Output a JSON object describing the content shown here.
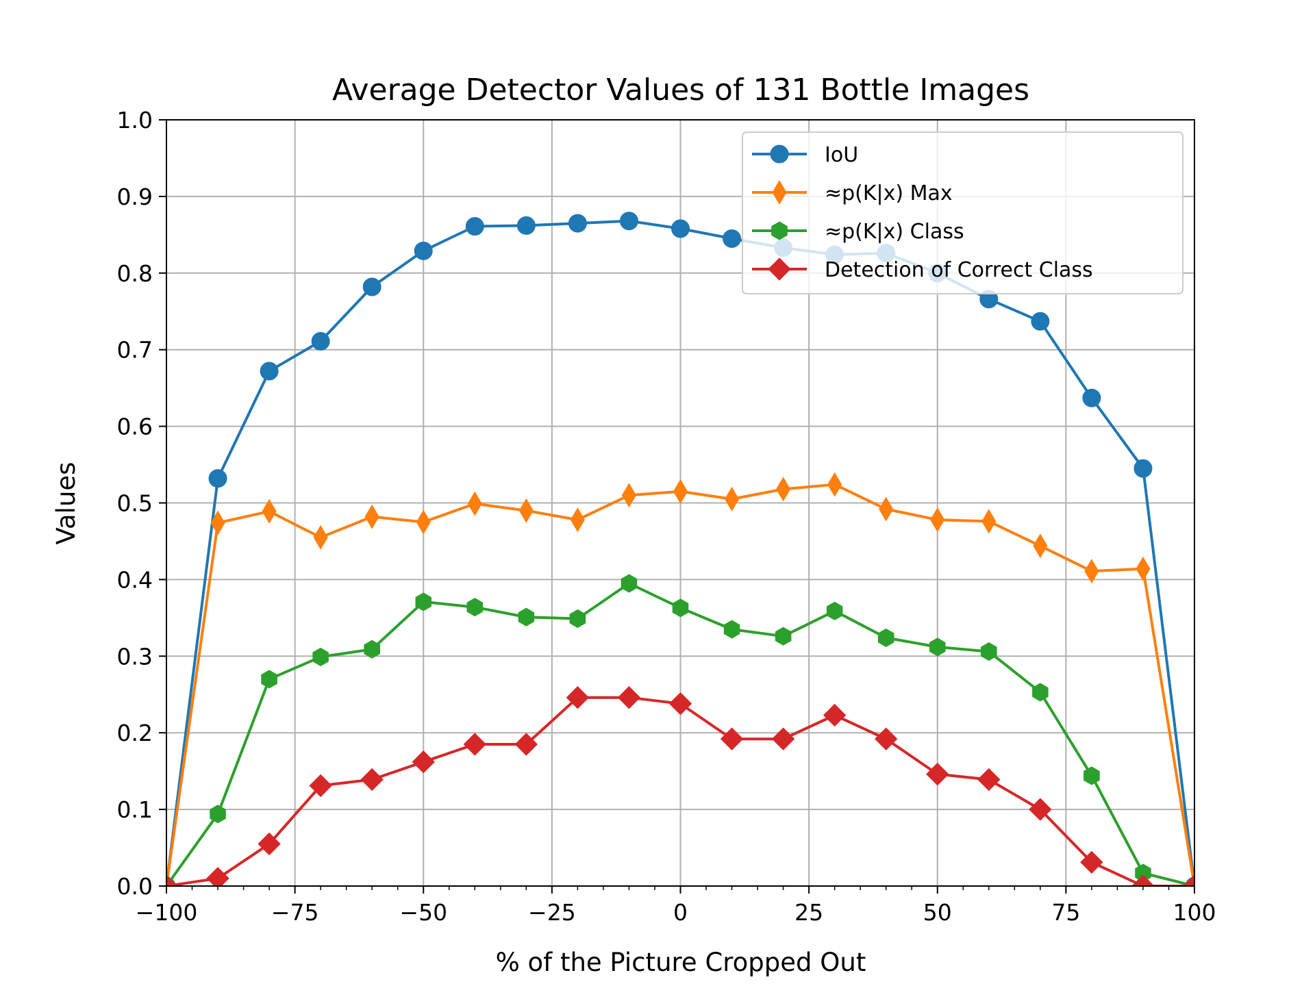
{
  "chart_data": {
    "type": "line",
    "title": "Average Detector Values of 131 Bottle Images",
    "xlabel": "% of the Picture Cropped Out",
    "ylabel": "Values",
    "xlim": [
      -100,
      100
    ],
    "ylim": [
      0.0,
      1.0
    ],
    "xticks": [
      "−100",
      "−75",
      "−50",
      "−25",
      "0",
      "25",
      "50",
      "75",
      "100"
    ],
    "xtick_values": [
      -100,
      -75,
      -50,
      -25,
      0,
      25,
      50,
      75,
      100
    ],
    "yticks": [
      "0.0",
      "0.1",
      "0.2",
      "0.3",
      "0.4",
      "0.5",
      "0.6",
      "0.7",
      "0.8",
      "0.9",
      "1.0"
    ],
    "ytick_values": [
      0.0,
      0.1,
      0.2,
      0.3,
      0.4,
      0.5,
      0.6,
      0.7,
      0.8,
      0.9,
      1.0
    ],
    "grid": true,
    "legend_position": "top-right",
    "x": [
      -100,
      -90,
      -80,
      -70,
      -60,
      -50,
      -40,
      -30,
      -20,
      -10,
      0,
      10,
      20,
      30,
      40,
      50,
      60,
      70,
      80,
      90,
      100
    ],
    "series": [
      {
        "name": "IoU",
        "color": "#1f77b4",
        "marker": "circle",
        "values": [
          0.0,
          0.532,
          0.672,
          0.711,
          0.782,
          0.829,
          0.861,
          0.862,
          0.865,
          0.868,
          0.858,
          0.845,
          0.833,
          0.824,
          0.826,
          0.8,
          0.766,
          0.737,
          0.637,
          0.545,
          0.0
        ]
      },
      {
        "name": "≈p(K|x) Max",
        "color": "#ff7f0e",
        "marker": "thin-diamond",
        "values": [
          0.0,
          0.474,
          0.489,
          0.455,
          0.482,
          0.475,
          0.499,
          0.49,
          0.478,
          0.51,
          0.515,
          0.505,
          0.518,
          0.524,
          0.492,
          0.478,
          0.476,
          0.444,
          0.411,
          0.414,
          0.0
        ]
      },
      {
        "name": "≈p(K|x) Class",
        "color": "#2ca02c",
        "marker": "hexagon",
        "values": [
          0.0,
          0.094,
          0.27,
          0.299,
          0.309,
          0.371,
          0.364,
          0.351,
          0.349,
          0.395,
          0.363,
          0.335,
          0.326,
          0.359,
          0.324,
          0.312,
          0.306,
          0.253,
          0.144,
          0.017,
          0.0
        ]
      },
      {
        "name": "Detection of Correct Class",
        "color": "#d62728",
        "marker": "diamond",
        "values": [
          0.0,
          0.01,
          0.055,
          0.131,
          0.139,
          0.162,
          0.185,
          0.185,
          0.246,
          0.246,
          0.238,
          0.192,
          0.192,
          0.223,
          0.192,
          0.146,
          0.139,
          0.1,
          0.031,
          0.0,
          0.0
        ]
      }
    ]
  }
}
